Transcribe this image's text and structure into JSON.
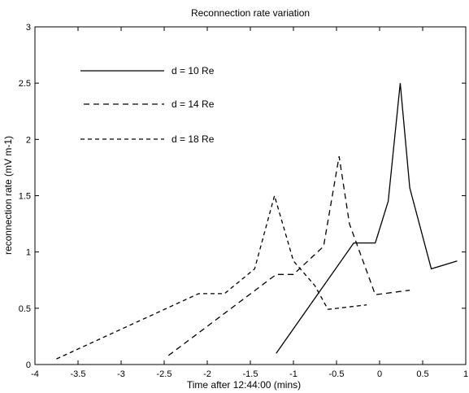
{
  "chart_data": {
    "type": "line",
    "title": "Reconnection rate variation",
    "xlabel": "Time after 12:44:00 (mins)",
    "ylabel": "reconnection rate (mV m-1)",
    "xlim": [
      -4,
      1
    ],
    "ylim": [
      0,
      3
    ],
    "xticks": [
      -4,
      -3.5,
      -3,
      -2.5,
      -2,
      -1.5,
      -1,
      -0.5,
      0,
      0.5,
      1
    ],
    "xtick_labels": [
      "-4",
      "-3.5",
      "-3",
      "-2.5",
      "-2",
      "-1.5",
      "-1",
      "-0.5",
      "0",
      "0.5",
      "1"
    ],
    "yticks": [
      0,
      0.5,
      1,
      1.5,
      2,
      2.5,
      3
    ],
    "ytick_labels": [
      "0",
      "0.5",
      "1",
      "1.5",
      "2",
      "2.5",
      "3"
    ],
    "grid": false,
    "legend_position": "top-left",
    "series": [
      {
        "name": "d = 10 Re",
        "style": "solid",
        "points": [
          [
            -1.2,
            0.1
          ],
          [
            -0.3,
            1.08
          ],
          [
            -0.05,
            1.08
          ],
          [
            0.1,
            1.45
          ],
          [
            0.24,
            2.5
          ],
          [
            0.35,
            1.57
          ],
          [
            0.6,
            0.85
          ],
          [
            0.9,
            0.92
          ]
        ]
      },
      {
        "name": "d = 14 Re",
        "style": "dashed",
        "points": [
          [
            -2.45,
            0.08
          ],
          [
            -1.2,
            0.8
          ],
          [
            -1.0,
            0.8
          ],
          [
            -0.65,
            1.05
          ],
          [
            -0.47,
            1.85
          ],
          [
            -0.35,
            1.25
          ],
          [
            -0.05,
            0.62
          ],
          [
            0.35,
            0.66
          ]
        ]
      },
      {
        "name": "d = 18 Re",
        "style": "short-dashed",
        "points": [
          [
            -3.75,
            0.05
          ],
          [
            -2.1,
            0.63
          ],
          [
            -1.8,
            0.63
          ],
          [
            -1.45,
            0.85
          ],
          [
            -1.22,
            1.5
          ],
          [
            -1.0,
            0.92
          ],
          [
            -0.75,
            0.7
          ],
          [
            -0.6,
            0.49
          ],
          [
            -0.15,
            0.53
          ]
        ]
      }
    ]
  }
}
